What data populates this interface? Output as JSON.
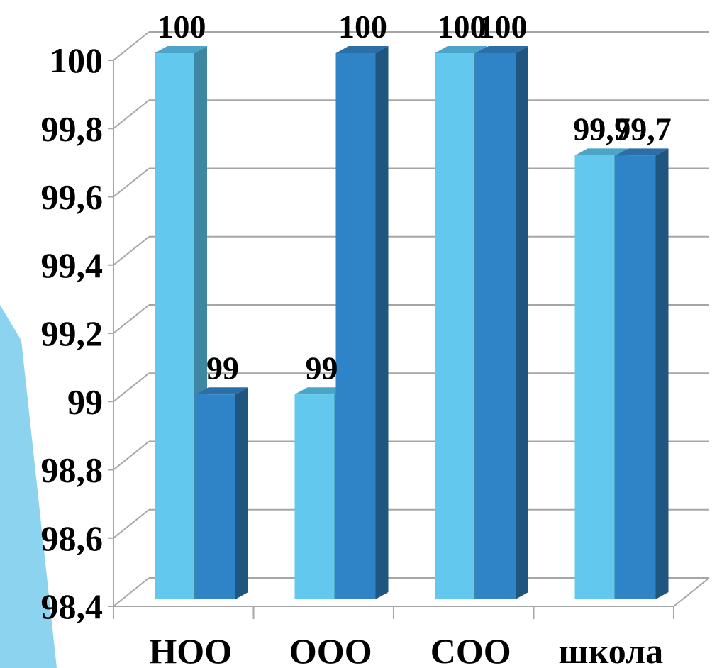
{
  "chart_data": {
    "type": "bar",
    "categories": [
      "НОО",
      "ООО",
      "СОО",
      "школа"
    ],
    "series": [
      {
        "values": [
          100,
          99,
          100,
          99.7
        ]
      },
      {
        "values": [
          99,
          100,
          100,
          99.7
        ]
      }
    ],
    "data_labels": [
      [
        "100",
        "99",
        "100",
        "99,7"
      ],
      [
        "99",
        "100",
        "100",
        "99,7"
      ]
    ],
    "ylim": [
      98.4,
      100
    ],
    "yticks": [
      98.4,
      98.6,
      98.8,
      99,
      99.2,
      99.4,
      99.6,
      99.8,
      100
    ],
    "ytick_labels": [
      "98,4",
      "98,6",
      "98,8",
      "99",
      "99,2",
      "99,4",
      "99,6",
      "99,8",
      "100"
    ],
    "grid": true,
    "legend": "none",
    "colors": {
      "series_1": "#62C8EE",
      "series_1_side": "#3E87A2",
      "series_1_top": "#4BA5C8",
      "series_2": "#2E84C6",
      "series_2_side": "#1F5680",
      "series_2_top": "#2A6FA8",
      "grid": "#A6A6A6",
      "decoration": "#8CD3F0"
    }
  }
}
